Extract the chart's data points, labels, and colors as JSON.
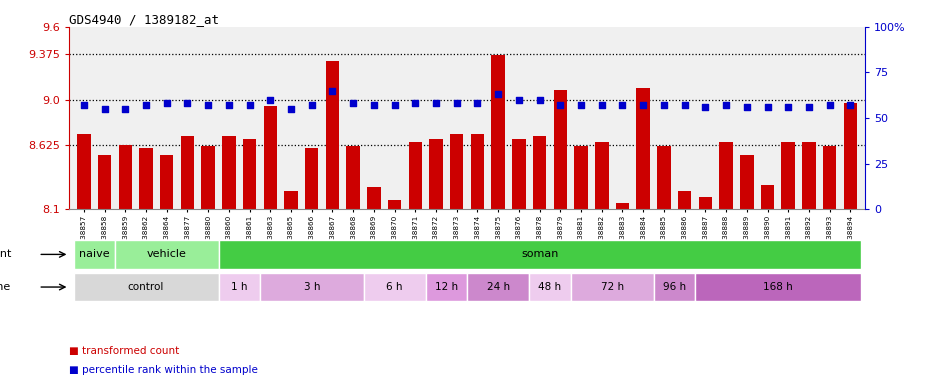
{
  "title": "GDS4940 / 1389182_at",
  "samples": [
    "GSM338857",
    "GSM338858",
    "GSM338859",
    "GSM338862",
    "GSM338864",
    "GSM338877",
    "GSM338880",
    "GSM338860",
    "GSM338861",
    "GSM338863",
    "GSM338865",
    "GSM338866",
    "GSM338867",
    "GSM338868",
    "GSM338869",
    "GSM338870",
    "GSM338871",
    "GSM338872",
    "GSM338873",
    "GSM338874",
    "GSM338875",
    "GSM338876",
    "GSM338878",
    "GSM338879",
    "GSM338881",
    "GSM338882",
    "GSM338883",
    "GSM338884",
    "GSM338885",
    "GSM338886",
    "GSM338887",
    "GSM338888",
    "GSM338889",
    "GSM338890",
    "GSM338891",
    "GSM338892",
    "GSM338893",
    "GSM338894"
  ],
  "bar_values": [
    8.72,
    8.55,
    8.63,
    8.6,
    8.55,
    8.7,
    8.62,
    8.7,
    8.68,
    8.95,
    8.25,
    8.6,
    9.32,
    8.62,
    8.28,
    8.18,
    8.65,
    8.68,
    8.72,
    8.72,
    9.37,
    8.68,
    8.7,
    9.08,
    8.62,
    8.65,
    8.15,
    9.1,
    8.62,
    8.25,
    8.2,
    8.65,
    8.55,
    8.3,
    8.65,
    8.65,
    8.62,
    8.97
  ],
  "percentile_values": [
    57,
    55,
    55,
    57,
    58,
    58,
    57,
    57,
    57,
    60,
    55,
    57,
    65,
    58,
    57,
    57,
    58,
    58,
    58,
    58,
    63,
    60,
    60,
    57,
    57,
    57,
    57,
    57,
    57,
    57,
    56,
    57,
    56,
    56,
    56,
    56,
    57,
    57
  ],
  "ylim_left": [
    8.1,
    9.6
  ],
  "ylim_right": [
    0,
    100
  ],
  "yticks_left": [
    8.1,
    8.625,
    9.0,
    9.375,
    9.6
  ],
  "yticks_right": [
    0,
    25,
    50,
    75,
    100
  ],
  "hlines": [
    8.625,
    9.0,
    9.375
  ],
  "bar_color": "#cc0000",
  "dot_color": "#0000cc",
  "plot_bg": "#f0f0f0",
  "agent_groups": [
    {
      "label": "naive",
      "start": 0,
      "end": 2,
      "color": "#99ee99"
    },
    {
      "label": "vehicle",
      "start": 2,
      "end": 7,
      "color": "#99ee99"
    },
    {
      "label": "soman",
      "start": 7,
      "end": 38,
      "color": "#44cc44"
    }
  ],
  "time_groups": [
    {
      "label": "control",
      "start": 0,
      "end": 7,
      "color": "#d8d8d8"
    },
    {
      "label": "1 h",
      "start": 7,
      "end": 9,
      "color": "#eeccee"
    },
    {
      "label": "3 h",
      "start": 9,
      "end": 14,
      "color": "#ddaadd"
    },
    {
      "label": "6 h",
      "start": 14,
      "end": 17,
      "color": "#eeccee"
    },
    {
      "label": "12 h",
      "start": 17,
      "end": 19,
      "color": "#dd99dd"
    },
    {
      "label": "24 h",
      "start": 19,
      "end": 22,
      "color": "#cc88cc"
    },
    {
      "label": "48 h",
      "start": 22,
      "end": 24,
      "color": "#eeccee"
    },
    {
      "label": "72 h",
      "start": 24,
      "end": 28,
      "color": "#ddaadd"
    },
    {
      "label": "96 h",
      "start": 28,
      "end": 30,
      "color": "#cc88cc"
    },
    {
      "label": "168 h",
      "start": 30,
      "end": 38,
      "color": "#bb66bb"
    }
  ],
  "legend": [
    {
      "label": "transformed count",
      "color": "#cc0000"
    },
    {
      "label": "percentile rank within the sample",
      "color": "#0000cc"
    }
  ]
}
